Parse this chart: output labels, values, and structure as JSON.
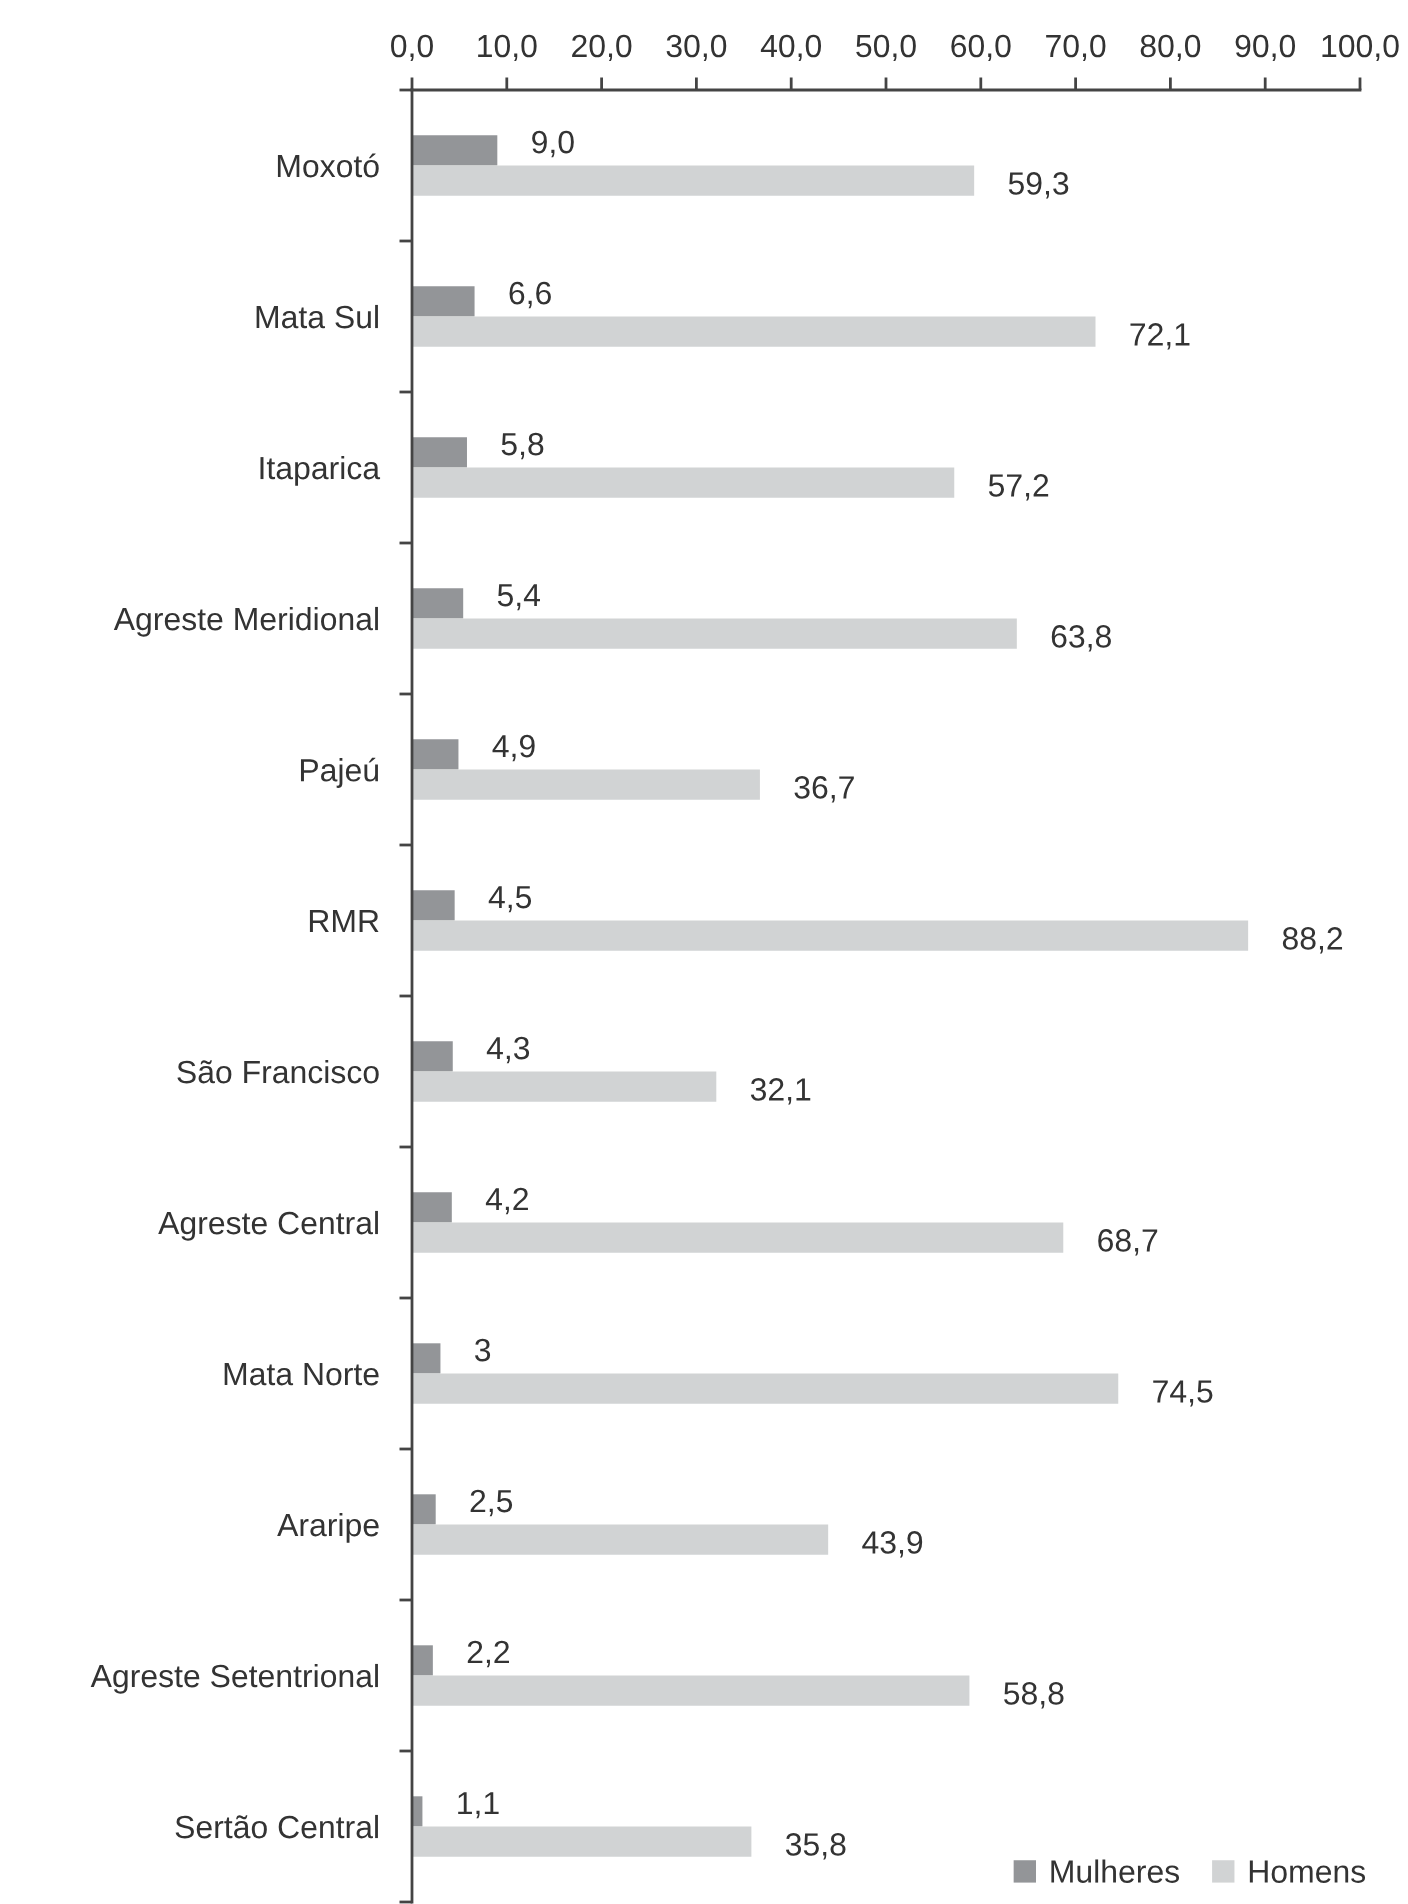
{
  "chart_data": {
    "type": "bar",
    "orientation": "horizontal",
    "categories": [
      "Moxotó",
      "Mata Sul",
      "Itaparica",
      "Agreste Meridional",
      "Pajeú",
      "RMR",
      "São Francisco",
      "Agreste Central",
      "Mata Norte",
      "Araripe",
      "Agreste Setentrional",
      "Sertão Central"
    ],
    "series": [
      {
        "name": "Mulheres",
        "color": "#939598",
        "values": [
          9.0,
          6.6,
          5.8,
          5.4,
          4.9,
          4.5,
          4.3,
          4.2,
          3,
          2.5,
          2.2,
          1.1
        ],
        "value_labels": [
          "9,0",
          "6,6",
          "5,8",
          "5,4",
          "4,9",
          "4,5",
          "4,3",
          "4,2",
          "3",
          "2,5",
          "2,2",
          "1,1"
        ]
      },
      {
        "name": "Homens",
        "color": "#d1d3d4",
        "values": [
          59.3,
          72.1,
          57.2,
          63.8,
          36.7,
          88.2,
          32.1,
          68.7,
          74.5,
          43.9,
          58.8,
          35.8
        ],
        "value_labels": [
          "59,3",
          "72,1",
          "57,2",
          "63,8",
          "36,7",
          "88,2",
          "32,1",
          "68,7",
          "74,5",
          "43,9",
          "58,8",
          "35,8"
        ]
      }
    ],
    "xlim": [
      0,
      100
    ],
    "xticks": [
      {
        "value": 0,
        "label": "0,0"
      },
      {
        "value": 10,
        "label": "10,0"
      },
      {
        "value": 20,
        "label": "20,0"
      },
      {
        "value": 30,
        "label": "30,0"
      },
      {
        "value": 40,
        "label": "40,0"
      },
      {
        "value": 50,
        "label": "50,0"
      },
      {
        "value": 60,
        "label": "60,0"
      },
      {
        "value": 70,
        "label": "70,0"
      },
      {
        "value": 80,
        "label": "80,0"
      },
      {
        "value": 90,
        "label": "90,0"
      },
      {
        "value": 100,
        "label": "100,0"
      }
    ],
    "grid": false,
    "legend": "bottom right"
  }
}
